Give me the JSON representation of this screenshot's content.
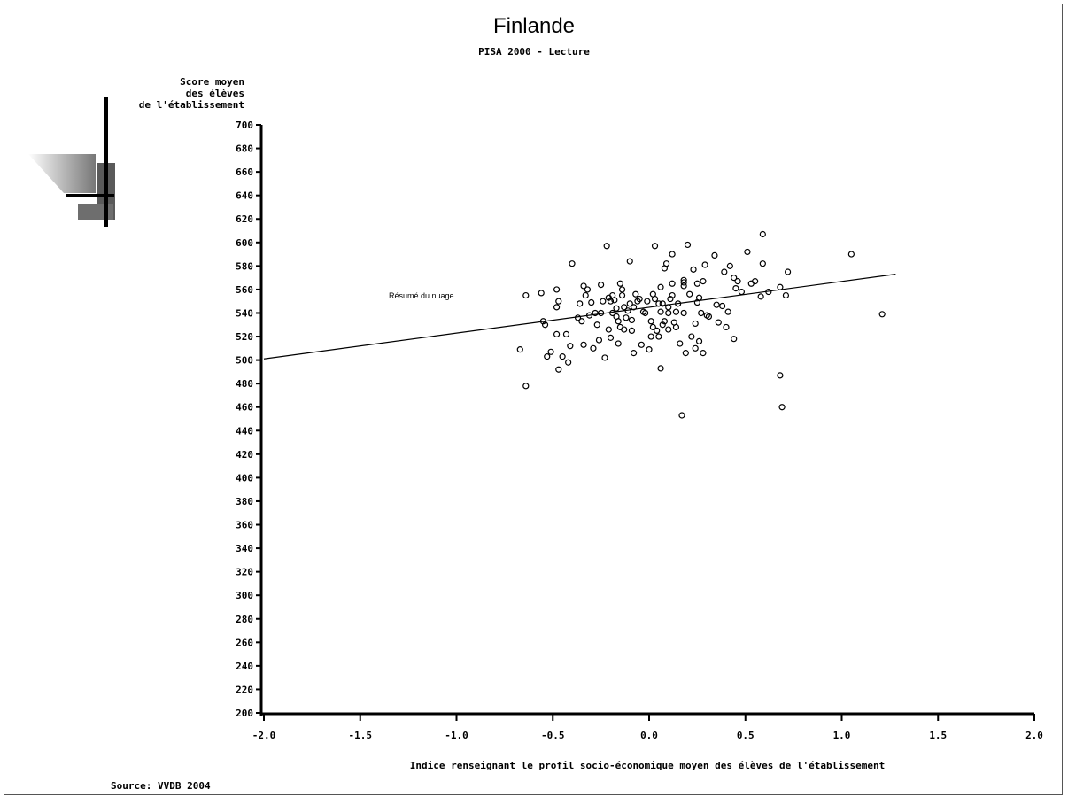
{
  "title": "Finlande",
  "subtitle": "PISA 2000 - Lecture",
  "ylabel_lines": [
    "Score moyen",
    "des élèves",
    "de l'établissement"
  ],
  "xlabel": "Indice renseignant le profil socio-économique moyen des élèves de l'établissement",
  "source": "Source: VVDB 2004",
  "trend_label": "Résumé du nuage",
  "chart_data": {
    "type": "scatter",
    "title": "Finlande",
    "subtitle": "PISA 2000 - Lecture",
    "xlabel": "Indice renseignant le profil socio-économique moyen des élèves de l'établissement",
    "ylabel": "Score moyen des élèves de l'établissement",
    "xlim": [
      -2.0,
      2.0
    ],
    "ylim": [
      200,
      700
    ],
    "x_ticks": [
      -2.0,
      -1.5,
      -1.0,
      -0.5,
      0.0,
      0.5,
      1.0,
      1.5,
      2.0
    ],
    "x_tick_labels": [
      "-2.0",
      "-1.5",
      "-1.0",
      "-0.5",
      "0.0",
      "0.5",
      "1.0",
      "1.5",
      "2.0"
    ],
    "y_ticks": [
      200,
      220,
      240,
      260,
      280,
      300,
      320,
      340,
      360,
      380,
      400,
      420,
      440,
      460,
      480,
      500,
      520,
      540,
      560,
      580,
      600,
      620,
      640,
      660,
      680,
      700
    ],
    "grid": false,
    "trend_line": {
      "label": "Résumé du nuage",
      "x": [
        -2.0,
        1.28
      ],
      "y": [
        501,
        573
      ]
    },
    "points": [
      [
        -0.67,
        509
      ],
      [
        -0.64,
        555
      ],
      [
        -0.64,
        478
      ],
      [
        -0.56,
        557
      ],
      [
        -0.55,
        533
      ],
      [
        -0.54,
        530
      ],
      [
        -0.53,
        503
      ],
      [
        -0.51,
        507
      ],
      [
        -0.48,
        560
      ],
      [
        -0.47,
        550
      ],
      [
        -0.48,
        545
      ],
      [
        -0.48,
        522
      ],
      [
        -0.47,
        492
      ],
      [
        -0.45,
        503
      ],
      [
        -0.43,
        522
      ],
      [
        -0.42,
        498
      ],
      [
        -0.41,
        512
      ],
      [
        -0.4,
        582
      ],
      [
        -0.37,
        536
      ],
      [
        -0.36,
        548
      ],
      [
        -0.35,
        533
      ],
      [
        -0.34,
        513
      ],
      [
        -0.34,
        563
      ],
      [
        -0.33,
        555
      ],
      [
        -0.32,
        560
      ],
      [
        -0.31,
        538
      ],
      [
        -0.3,
        549
      ],
      [
        -0.29,
        510
      ],
      [
        -0.28,
        540
      ],
      [
        -0.27,
        530
      ],
      [
        -0.26,
        517
      ],
      [
        -0.25,
        564
      ],
      [
        -0.25,
        540
      ],
      [
        -0.24,
        550
      ],
      [
        -0.23,
        502
      ],
      [
        -0.22,
        597
      ],
      [
        -0.21,
        553
      ],
      [
        -0.21,
        526
      ],
      [
        -0.2,
        519
      ],
      [
        -0.2,
        550
      ],
      [
        -0.19,
        540
      ],
      [
        -0.19,
        555
      ],
      [
        -0.18,
        551
      ],
      [
        -0.17,
        544
      ],
      [
        -0.17,
        537
      ],
      [
        -0.16,
        514
      ],
      [
        -0.16,
        533
      ],
      [
        -0.15,
        528
      ],
      [
        -0.15,
        565
      ],
      [
        -0.14,
        560
      ],
      [
        -0.14,
        555
      ],
      [
        -0.13,
        545
      ],
      [
        -0.13,
        526
      ],
      [
        -0.12,
        536
      ],
      [
        -0.11,
        542
      ],
      [
        -0.1,
        548
      ],
      [
        -0.1,
        584
      ],
      [
        -0.09,
        534
      ],
      [
        -0.09,
        525
      ],
      [
        -0.08,
        506
      ],
      [
        -0.08,
        545
      ],
      [
        -0.07,
        556
      ],
      [
        -0.06,
        550
      ],
      [
        -0.05,
        552
      ],
      [
        -0.04,
        513
      ],
      [
        -0.03,
        541
      ],
      [
        -0.02,
        540
      ],
      [
        -0.01,
        550
      ],
      [
        0.0,
        509
      ],
      [
        0.01,
        520
      ],
      [
        0.01,
        533
      ],
      [
        0.02,
        556
      ],
      [
        0.02,
        528
      ],
      [
        0.03,
        597
      ],
      [
        0.03,
        552
      ],
      [
        0.04,
        525
      ],
      [
        0.05,
        548
      ],
      [
        0.05,
        520
      ],
      [
        0.06,
        541
      ],
      [
        0.06,
        562
      ],
      [
        0.06,
        493
      ],
      [
        0.07,
        530
      ],
      [
        0.07,
        548
      ],
      [
        0.08,
        578
      ],
      [
        0.08,
        533
      ],
      [
        0.09,
        582
      ],
      [
        0.1,
        540
      ],
      [
        0.1,
        545
      ],
      [
        0.1,
        526
      ],
      [
        0.11,
        552
      ],
      [
        0.12,
        590
      ],
      [
        0.12,
        555
      ],
      [
        0.12,
        565
      ],
      [
        0.13,
        532
      ],
      [
        0.14,
        528
      ],
      [
        0.14,
        541
      ],
      [
        0.15,
        548
      ],
      [
        0.16,
        514
      ],
      [
        0.17,
        453
      ],
      [
        0.18,
        540
      ],
      [
        0.18,
        566
      ],
      [
        0.18,
        568
      ],
      [
        0.18,
        563
      ],
      [
        0.19,
        506
      ],
      [
        0.2,
        598
      ],
      [
        0.21,
        556
      ],
      [
        0.22,
        520
      ],
      [
        0.23,
        577
      ],
      [
        0.24,
        510
      ],
      [
        0.24,
        531
      ],
      [
        0.25,
        565
      ],
      [
        0.25,
        549
      ],
      [
        0.26,
        553
      ],
      [
        0.26,
        516
      ],
      [
        0.27,
        540
      ],
      [
        0.28,
        567
      ],
      [
        0.28,
        506
      ],
      [
        0.29,
        581
      ],
      [
        0.3,
        538
      ],
      [
        0.31,
        537
      ],
      [
        0.34,
        589
      ],
      [
        0.35,
        547
      ],
      [
        0.36,
        532
      ],
      [
        0.38,
        546
      ],
      [
        0.39,
        575
      ],
      [
        0.4,
        528
      ],
      [
        0.41,
        541
      ],
      [
        0.42,
        580
      ],
      [
        0.44,
        518
      ],
      [
        0.44,
        570
      ],
      [
        0.45,
        561
      ],
      [
        0.46,
        567
      ],
      [
        0.48,
        558
      ],
      [
        0.51,
        592
      ],
      [
        0.53,
        565
      ],
      [
        0.55,
        567
      ],
      [
        0.58,
        554
      ],
      [
        0.59,
        607
      ],
      [
        0.59,
        582
      ],
      [
        0.62,
        558
      ],
      [
        0.68,
        562
      ],
      [
        0.68,
        487
      ],
      [
        0.69,
        460
      ],
      [
        0.71,
        555
      ],
      [
        0.72,
        575
      ],
      [
        1.05,
        590
      ],
      [
        1.21,
        539
      ]
    ]
  }
}
